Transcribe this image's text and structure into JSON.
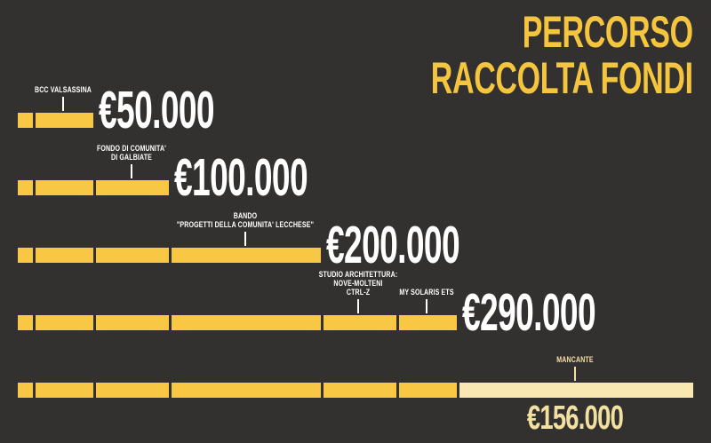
{
  "title": {
    "line1": "PERCORSO",
    "line2": "RACCOLTA FONDI"
  },
  "colors": {
    "background": "#333130",
    "bar_yellow": "#F8C845",
    "missing_cream": "#F9E8B1",
    "missing_text": "#F2E0A0",
    "value_white": "#FFFFFF",
    "title_yellow": "#F5C53E"
  },
  "chart_data": {
    "type": "bar",
    "title": "PERCORSO RACCOLTA FONDI",
    "unit": "EUR",
    "orientation": "horizontal",
    "goal_total_eur": 446000,
    "raised_total_eur": 290000,
    "missing_eur": 156000,
    "segments_eur": [
      10000,
      40000,
      50000,
      100000,
      50000,
      40000
    ],
    "rows": [
      {
        "value": "€50.000",
        "cumulative_eur": 50000,
        "segments_shown": 2,
        "includes_missing": false,
        "callouts": [
          {
            "lines": [
              "BCC VALSASSINA"
            ],
            "points_to_segment": 1,
            "style": "normal"
          }
        ]
      },
      {
        "value": "€100.000",
        "cumulative_eur": 100000,
        "segments_shown": 3,
        "includes_missing": false,
        "callouts": [
          {
            "lines": [
              "FONDO DI COMUNITA'",
              "DI GALBIATE"
            ],
            "points_to_segment": 2,
            "style": "normal"
          }
        ]
      },
      {
        "value": "€200.000",
        "cumulative_eur": 200000,
        "segments_shown": 4,
        "includes_missing": false,
        "callouts": [
          {
            "lines": [
              "BANDO",
              "\"PROGETTI DELLA COMUNITA' LECCHESE\""
            ],
            "points_to_segment": 3,
            "style": "normal"
          }
        ]
      },
      {
        "value": "€290.000",
        "cumulative_eur": 290000,
        "segments_shown": 6,
        "includes_missing": false,
        "callouts": [
          {
            "lines": [
              "STUDIO ARCHITETTURA:",
              "NOVE-MOLTENI",
              "CTRL-Z"
            ],
            "points_to_segment": 4,
            "style": "normal"
          },
          {
            "lines": [
              "MY SOLARIS ETS"
            ],
            "points_to_segment": 5,
            "style": "normal"
          }
        ]
      },
      {
        "value": "€156.000",
        "cumulative_eur": 446000,
        "segments_shown": 6,
        "includes_missing": true,
        "callouts": [
          {
            "lines": [
              "MANCANTE"
            ],
            "points_to_segment": 6,
            "style": "missing"
          }
        ]
      }
    ]
  }
}
